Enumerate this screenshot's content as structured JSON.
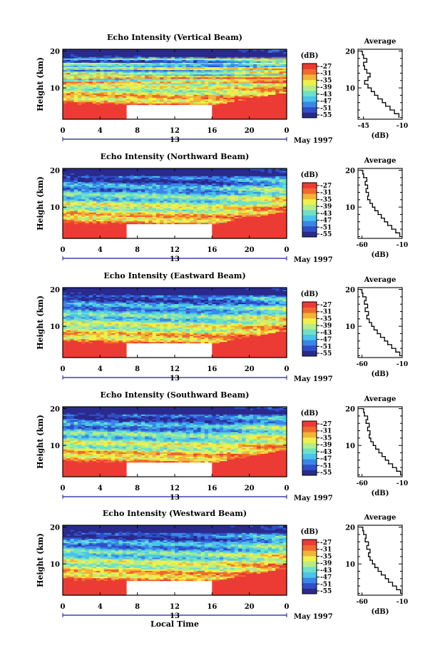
{
  "figure": {
    "ylabel": "Height (km)",
    "xlabel": "Local Time",
    "date_label": "May 1997",
    "colorbar_title": "(dB)",
    "avg_title": "Average",
    "avg_xlabel": "(dB)",
    "colors": {
      "colormap": [
        "#2a2a8c",
        "#2f4fc8",
        "#3a86e8",
        "#49c4ea",
        "#6fe0c8",
        "#b5ec8a",
        "#f0f04a",
        "#f2b437",
        "#ef6a2e",
        "#ec3b34"
      ],
      "axis_line": "#000000",
      "timeline": "#1c1c9a"
    }
  },
  "chart_data": [
    {
      "type": "heatmap",
      "title": "Echo Intensity (Vertical Beam)",
      "xlabel": "Local Time",
      "ylabel": "Height (km)",
      "xlim": [
        0,
        24
      ],
      "ylim": [
        1.5,
        20.5
      ],
      "xticks": [
        "0",
        "4",
        "8",
        "12",
        "16",
        "20",
        "0"
      ],
      "yticks": [
        "10",
        "20"
      ],
      "day_marker": "13",
      "colorbar": {
        "label": "(dB)",
        "ticks": [
          "-27",
          "-31",
          "-35",
          "-39",
          "-43",
          "-47",
          "-51",
          "-55"
        ],
        "range": [
          -55,
          -27
        ]
      },
      "data_gap": {
        "t_start": 7,
        "t_end": 16,
        "h_max": 5.3
      },
      "profile": {
        "title": "Average",
        "xlabel": "(dB)",
        "xticks": [
          "-45",
          "-10"
        ],
        "xlim": [
          -50,
          -10
        ],
        "yticks": [
          "10",
          "20"
        ],
        "heights": [
          2,
          3,
          4,
          5,
          6,
          7,
          8,
          9,
          10,
          11,
          12,
          13,
          14,
          15,
          16,
          17,
          18,
          19,
          20
        ],
        "values": [
          -13,
          -17,
          -21,
          -25,
          -28,
          -32,
          -35,
          -38,
          -41,
          -44,
          -41,
          -39,
          -42,
          -44,
          -45,
          -42,
          -45,
          -46,
          -47
        ]
      }
    },
    {
      "type": "heatmap",
      "title": "Echo Intensity (Northward Beam)",
      "xlabel": "Local Time",
      "ylabel": "Height (km)",
      "xlim": [
        0,
        24
      ],
      "ylim": [
        1.5,
        20.5
      ],
      "xticks": [
        "0",
        "4",
        "8",
        "12",
        "16",
        "20",
        "0"
      ],
      "yticks": [
        "10",
        "20"
      ],
      "day_marker": "13",
      "colorbar": {
        "label": "(dB)",
        "ticks": [
          "-27",
          "-31",
          "-35",
          "-39",
          "-43",
          "-47",
          "-51",
          "-55"
        ],
        "range": [
          -55,
          -27
        ]
      },
      "data_gap": {
        "t_start": 7,
        "t_end": 16,
        "h_max": 5.3
      },
      "profile": {
        "title": "Average",
        "xlabel": "(dB)",
        "xticks": [
          "-60",
          "-10"
        ],
        "xlim": [
          -65,
          -10
        ],
        "yticks": [
          "10",
          "20"
        ],
        "heights": [
          2,
          3,
          4,
          5,
          6,
          7,
          8,
          9,
          10,
          11,
          12,
          13,
          14,
          15,
          16,
          17,
          18,
          19,
          20
        ],
        "values": [
          -13,
          -18,
          -23,
          -28,
          -32,
          -36,
          -40,
          -44,
          -47,
          -50,
          -53,
          -52,
          -55,
          -53,
          -56,
          -54,
          -58,
          -59,
          -61
        ]
      }
    },
    {
      "type": "heatmap",
      "title": "Echo Intensity (Eastward Beam)",
      "xlabel": "Local Time",
      "ylabel": "Height (km)",
      "xlim": [
        0,
        24
      ],
      "ylim": [
        1.5,
        20.5
      ],
      "xticks": [
        "0",
        "4",
        "8",
        "12",
        "16",
        "20",
        "0"
      ],
      "yticks": [
        "10",
        "20"
      ],
      "day_marker": "13",
      "colorbar": {
        "label": "(dB)",
        "ticks": [
          "-27",
          "-31",
          "-35",
          "-39",
          "-43",
          "-47",
          "-51",
          "-55"
        ],
        "range": [
          -55,
          -27
        ]
      },
      "data_gap": {
        "t_start": 7,
        "t_end": 16,
        "h_max": 5.3
      },
      "profile": {
        "title": "Average",
        "xlabel": "(dB)",
        "xticks": [
          "-60",
          "-10"
        ],
        "xlim": [
          -65,
          -10
        ],
        "yticks": [
          "10",
          "20"
        ],
        "heights": [
          2,
          3,
          4,
          5,
          6,
          7,
          8,
          9,
          10,
          11,
          12,
          13,
          14,
          15,
          16,
          17,
          18,
          19,
          20
        ],
        "values": [
          -13,
          -18,
          -23,
          -28,
          -32,
          -37,
          -41,
          -45,
          -48,
          -51,
          -54,
          -52,
          -56,
          -53,
          -57,
          -55,
          -59,
          -60,
          -62
        ]
      }
    },
    {
      "type": "heatmap",
      "title": "Echo Intensity (Southward Beam)",
      "xlabel": "Local Time",
      "ylabel": "Height (km)",
      "xlim": [
        0,
        24
      ],
      "ylim": [
        1.5,
        20.5
      ],
      "xticks": [
        "0",
        "4",
        "8",
        "12",
        "16",
        "20",
        "0"
      ],
      "yticks": [
        "10",
        "20"
      ],
      "day_marker": "13",
      "colorbar": {
        "label": "(dB)",
        "ticks": [
          "-27",
          "-31",
          "-35",
          "-39",
          "-43",
          "-47",
          "-51",
          "-55"
        ],
        "range": [
          -55,
          -27
        ]
      },
      "data_gap": {
        "t_start": 7,
        "t_end": 16,
        "h_max": 5.3
      },
      "profile": {
        "title": "Average",
        "xlabel": "(dB)",
        "xticks": [
          "-60",
          "-10"
        ],
        "xlim": [
          -65,
          -10
        ],
        "yticks": [
          "10",
          "20"
        ],
        "heights": [
          2,
          3,
          4,
          5,
          6,
          7,
          8,
          9,
          10,
          11,
          12,
          13,
          14,
          15,
          16,
          17,
          18,
          19,
          20
        ],
        "values": [
          -12,
          -17,
          -22,
          -27,
          -31,
          -35,
          -39,
          -43,
          -46,
          -49,
          -51,
          -50,
          -53,
          -51,
          -55,
          -53,
          -57,
          -58,
          -60
        ]
      }
    },
    {
      "type": "heatmap",
      "title": "Echo Intensity (Westward Beam)",
      "xlabel": "Local Time",
      "ylabel": "Height (km)",
      "xlim": [
        0,
        24
      ],
      "ylim": [
        1.5,
        20.5
      ],
      "xticks": [
        "0",
        "4",
        "8",
        "12",
        "16",
        "20",
        "0"
      ],
      "yticks": [
        "10",
        "20"
      ],
      "day_marker": "13",
      "colorbar": {
        "label": "(dB)",
        "ticks": [
          "-27",
          "-31",
          "-35",
          "-39",
          "-43",
          "-47",
          "-51",
          "-55"
        ],
        "range": [
          -55,
          -27
        ]
      },
      "data_gap": {
        "t_start": 7,
        "t_end": 16,
        "h_max": 5.3
      },
      "profile": {
        "title": "Average",
        "xlabel": "(dB)",
        "xticks": [
          "-60",
          "-10"
        ],
        "xlim": [
          -65,
          -10
        ],
        "yticks": [
          "10",
          "20"
        ],
        "heights": [
          2,
          3,
          4,
          5,
          6,
          7,
          8,
          9,
          10,
          11,
          12,
          13,
          14,
          15,
          16,
          17,
          18,
          19,
          20
        ],
        "values": [
          -12,
          -17,
          -22,
          -27,
          -31,
          -36,
          -40,
          -44,
          -47,
          -50,
          -52,
          -50,
          -54,
          -52,
          -56,
          -55,
          -58,
          -59,
          -61
        ]
      }
    }
  ]
}
